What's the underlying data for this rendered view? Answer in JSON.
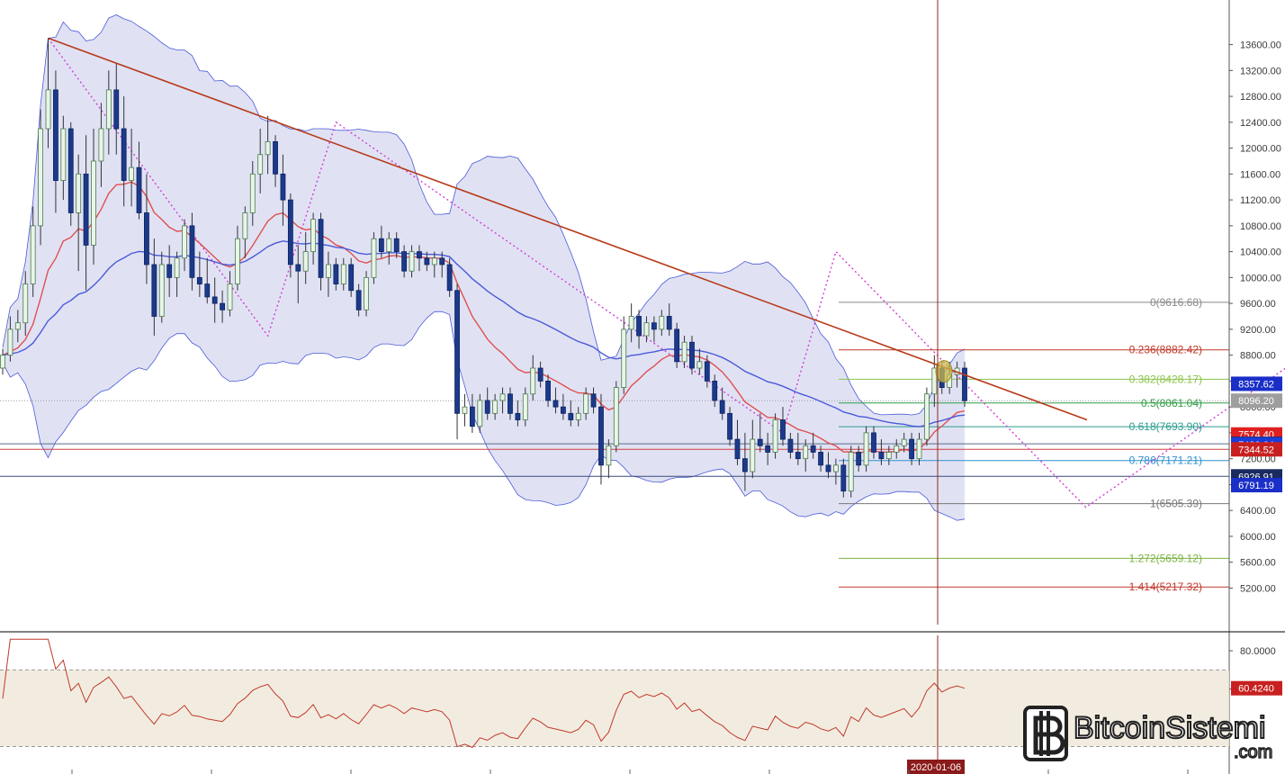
{
  "chart_data": {
    "type": "candlestick",
    "title": "",
    "price_axis": {
      "ylim": [
        4900,
        13900
      ],
      "ticks": [
        13600,
        13200,
        12800,
        12400,
        12000,
        11600,
        11200,
        10800,
        10400,
        10000,
        9600,
        9200,
        8800,
        8400,
        8000,
        7600,
        7200,
        6800,
        6400,
        6000,
        5600,
        5200
      ],
      "tick_labels": [
        "13600.00",
        "13200.00",
        "12800.00",
        "12400.00",
        "12000.00",
        "11600.00",
        "11200.00",
        "10800.00",
        "10400.00",
        "10000.00",
        "9600.00",
        "9200.00",
        "8800.00",
        "8400.00",
        "8000.00",
        "7600.00",
        "7200.00",
        "6800.00",
        "6400.00",
        "6000.00",
        "5600.00",
        "5200.00"
      ]
    },
    "x_axis": {
      "highlight_label": "2020-01-06"
    },
    "candles": [
      [
        8600,
        8900,
        8500,
        8800
      ],
      [
        8800,
        9400,
        8700,
        9200
      ],
      [
        9200,
        9500,
        9000,
        9300
      ],
      [
        9300,
        10100,
        9100,
        9900
      ],
      [
        9900,
        11100,
        9700,
        10800
      ],
      [
        10800,
        12600,
        10500,
        12300
      ],
      [
        12300,
        13700,
        12000,
        12900
      ],
      [
        12900,
        13200,
        11000,
        11500
      ],
      [
        11500,
        12500,
        11200,
        12300
      ],
      [
        12300,
        12400,
        10800,
        11000
      ],
      [
        11000,
        11900,
        10100,
        11600
      ],
      [
        11600,
        12200,
        9800,
        10500
      ],
      [
        10500,
        12300,
        10200,
        11800
      ],
      [
        11800,
        12700,
        11400,
        12300
      ],
      [
        12300,
        13200,
        11900,
        12900
      ],
      [
        12900,
        13300,
        11900,
        12300
      ],
      [
        12300,
        12800,
        11100,
        11500
      ],
      [
        11500,
        12300,
        11100,
        11700
      ],
      [
        11700,
        12100,
        10900,
        11000
      ],
      [
        11000,
        11600,
        9900,
        10200
      ],
      [
        10200,
        10600,
        9100,
        9400
      ],
      [
        9400,
        10400,
        9300,
        10200
      ],
      [
        10200,
        10500,
        9700,
        10000
      ],
      [
        10000,
        10400,
        9700,
        10300
      ],
      [
        10300,
        10900,
        10100,
        10800
      ],
      [
        10800,
        11000,
        9800,
        10000
      ],
      [
        10000,
        10400,
        9700,
        9900
      ],
      [
        9900,
        10300,
        9600,
        9700
      ],
      [
        9700,
        10000,
        9300,
        9600
      ],
      [
        9600,
        9800,
        9300,
        9500
      ],
      [
        9500,
        10100,
        9400,
        9900
      ],
      [
        9900,
        10800,
        9800,
        10600
      ],
      [
        10600,
        11100,
        10300,
        11000
      ],
      [
        11000,
        11800,
        10800,
        11600
      ],
      [
        11600,
        12300,
        11300,
        11900
      ],
      [
        11900,
        12500,
        11600,
        12100
      ],
      [
        12100,
        12200,
        11400,
        11600
      ],
      [
        11600,
        11900,
        10800,
        11200
      ],
      [
        11200,
        11300,
        10000,
        10200
      ],
      [
        10200,
        10500,
        9600,
        10100
      ],
      [
        10100,
        10700,
        9900,
        10400
      ],
      [
        10400,
        11000,
        10200,
        10900
      ],
      [
        10900,
        11000,
        9800,
        10000
      ],
      [
        10000,
        10400,
        9700,
        10200
      ],
      [
        10200,
        10300,
        9800,
        9900
      ],
      [
        9900,
        10300,
        9800,
        10200
      ],
      [
        10200,
        10300,
        9700,
        9800
      ],
      [
        9800,
        9900,
        9400,
        9500
      ],
      [
        9500,
        10100,
        9400,
        10000
      ],
      [
        10000,
        10700,
        9900,
        10600
      ],
      [
        10600,
        10800,
        10300,
        10400
      ],
      [
        10400,
        10700,
        10200,
        10600
      ],
      [
        10600,
        10700,
        10300,
        10400
      ],
      [
        10400,
        10500,
        10000,
        10100
      ],
      [
        10100,
        10500,
        10000,
        10400
      ],
      [
        10400,
        10500,
        10100,
        10300
      ],
      [
        10300,
        10400,
        10100,
        10200
      ],
      [
        10200,
        10400,
        10000,
        10300
      ],
      [
        10300,
        10400,
        10000,
        10200
      ],
      [
        10200,
        10300,
        9700,
        9800
      ],
      [
        9800,
        9900,
        7500,
        7900
      ],
      [
        7900,
        8200,
        7700,
        8000
      ],
      [
        8000,
        8200,
        7600,
        7700
      ],
      [
        7700,
        8200,
        7600,
        8100
      ],
      [
        8100,
        8300,
        7800,
        7900
      ],
      [
        7900,
        8200,
        7800,
        8100
      ],
      [
        8100,
        8300,
        7900,
        8200
      ],
      [
        8200,
        8300,
        7800,
        7900
      ],
      [
        7900,
        8100,
        7700,
        7800
      ],
      [
        7800,
        8300,
        7700,
        8200
      ],
      [
        8200,
        8800,
        8100,
        8600
      ],
      [
        8600,
        8700,
        8300,
        8400
      ],
      [
        8400,
        8500,
        8000,
        8100
      ],
      [
        8100,
        8300,
        7900,
        8000
      ],
      [
        8000,
        8200,
        7800,
        7900
      ],
      [
        7900,
        8100,
        7700,
        7800
      ],
      [
        7800,
        8000,
        7700,
        7900
      ],
      [
        7900,
        8300,
        7800,
        8200
      ],
      [
        8200,
        8300,
        7900,
        8000
      ],
      [
        8000,
        8200,
        6800,
        7100
      ],
      [
        7100,
        7500,
        6900,
        7400
      ],
      [
        7400,
        8400,
        7300,
        8300
      ],
      [
        8300,
        9400,
        8200,
        9200
      ],
      [
        9200,
        9600,
        9000,
        9400
      ],
      [
        9400,
        9500,
        8900,
        9100
      ],
      [
        9100,
        9400,
        9000,
        9300
      ],
      [
        9300,
        9400,
        9000,
        9200
      ],
      [
        9200,
        9500,
        9100,
        9400
      ],
      [
        9400,
        9600,
        9100,
        9200
      ],
      [
        9200,
        9300,
        8600,
        8700
      ],
      [
        8700,
        9100,
        8600,
        9000
      ],
      [
        9000,
        9100,
        8500,
        8600
      ],
      [
        8600,
        8900,
        8500,
        8700
      ],
      [
        8700,
        8800,
        8300,
        8400
      ],
      [
        8400,
        8500,
        8000,
        8100
      ],
      [
        8100,
        8300,
        7800,
        7900
      ],
      [
        7900,
        8000,
        7400,
        7500
      ],
      [
        7500,
        7800,
        7100,
        7200
      ],
      [
        7200,
        7600,
        6700,
        7000
      ],
      [
        7000,
        7800,
        6900,
        7500
      ],
      [
        7500,
        7900,
        7300,
        7400
      ],
      [
        7400,
        7600,
        7100,
        7300
      ],
      [
        7300,
        7900,
        7200,
        7800
      ],
      [
        7800,
        8000,
        7400,
        7500
      ],
      [
        7500,
        7600,
        7200,
        7300
      ],
      [
        7300,
        7600,
        7100,
        7200
      ],
      [
        7200,
        7500,
        7000,
        7400
      ],
      [
        7400,
        7600,
        7200,
        7300
      ],
      [
        7300,
        7400,
        7000,
        7100
      ],
      [
        7100,
        7300,
        6900,
        7000
      ],
      [
        7000,
        7200,
        6800,
        7100
      ],
      [
        7100,
        7200,
        6600,
        6700
      ],
      [
        6700,
        7400,
        6600,
        7300
      ],
      [
        7300,
        7400,
        7000,
        7100
      ],
      [
        7100,
        7700,
        7000,
        7600
      ],
      [
        7600,
        7700,
        7200,
        7300
      ],
      [
        7300,
        7500,
        7100,
        7200
      ],
      [
        7200,
        7400,
        7100,
        7300
      ],
      [
        7300,
        7500,
        7200,
        7400
      ],
      [
        7400,
        7600,
        7300,
        7500
      ],
      [
        7500,
        7600,
        7100,
        7200
      ],
      [
        7200,
        7600,
        7100,
        7500
      ],
      [
        7500,
        8300,
        7400,
        8200
      ],
      [
        8200,
        8800,
        8000,
        8600
      ],
      [
        8600,
        8700,
        8200,
        8300
      ],
      [
        8300,
        8700,
        8200,
        8500
      ],
      [
        8500,
        8700,
        8300,
        8600
      ],
      [
        8600,
        8700,
        8000,
        8096
      ]
    ],
    "series": [
      {
        "name": "",
        "color": "#e05050",
        "role": "fast moving average"
      },
      {
        "name": "",
        "color": "#4a5ad8",
        "role": "slow moving average"
      }
    ],
    "bollinger": {
      "fill": "#d6d8f0",
      "edge": "#4a5ad8"
    },
    "trendline": {
      "color": "#b83a1a",
      "from": {
        "index": 6,
        "price": 13700
      },
      "to": {
        "index": 150,
        "price": 7800
      }
    },
    "fibonacci": [
      {
        "level": "0",
        "price": 9616.68,
        "label": "0(9616.68)",
        "color": "#888888"
      },
      {
        "level": "0.236",
        "price": 8882.42,
        "label": "0.236(8882.42)",
        "color": "#c0392b"
      },
      {
        "level": "0.382",
        "price": 8428.17,
        "label": "0.382(8428.17)",
        "color": "#8bc34a"
      },
      {
        "level": "0.5",
        "price": 8061.04,
        "label": "0.5(8061.04)",
        "color": "#2e9e44"
      },
      {
        "level": "0.618",
        "price": 7693.9,
        "label": "0.618(7693.90)",
        "color": "#2a9d8f"
      },
      {
        "level": "0.786",
        "price": 7171.21,
        "label": "0.786(7171.21)",
        "color": "#2f8fd0"
      },
      {
        "level": "1",
        "price": 6505.39,
        "label": "1(6505.39)",
        "color": "#777777"
      },
      {
        "level": "1.272",
        "price": 5659.12,
        "label": "1.272(5659.12)",
        "color": "#7cb342"
      },
      {
        "level": "1.414",
        "price": 5217.32,
        "label": "1.414(5217.32)",
        "color": "#c0392b"
      }
    ],
    "horizontal_lines": [
      {
        "price": 7430.07,
        "color": "#5a6b8a"
      },
      {
        "price": 7344.52,
        "color": "#d04040"
      },
      {
        "price": 6926.91,
        "color": "#3a4a7a"
      }
    ],
    "price_tags": [
      {
        "price": 8357.62,
        "label": "8357.62",
        "bg": "#1a2ec8"
      },
      {
        "price": 8096.2,
        "label": "8096.20",
        "bg": "#9e9e9e"
      },
      {
        "price": 7574.4,
        "label": "7574.40",
        "bg": "#e02020"
      },
      {
        "price": 7430.07,
        "label": "7430.07",
        "bg": "#1a2a60"
      },
      {
        "price": 7420.64,
        "label": "7420.64",
        "bg": "#1a3cd8"
      },
      {
        "price": 7344.52,
        "label": "7344.52",
        "bg": "#c82020"
      },
      {
        "price": 6926.91,
        "label": "6926.91",
        "bg": "#1a2a60"
      },
      {
        "price": 6791.19,
        "label": "6791.19",
        "bg": "#1a2ec8"
      }
    ],
    "indicator": {
      "ticks": [
        "80.0000",
        "60.0000"
      ],
      "tick_values": [
        80,
        60
      ],
      "ylim": [
        18,
        88
      ],
      "band": [
        30,
        70
      ],
      "last_label": "60.4240",
      "last_value": 60.424,
      "color": "#c0392b"
    }
  },
  "watermark": {
    "brand": "BitcoinSistemi",
    "suffix": ".com"
  }
}
